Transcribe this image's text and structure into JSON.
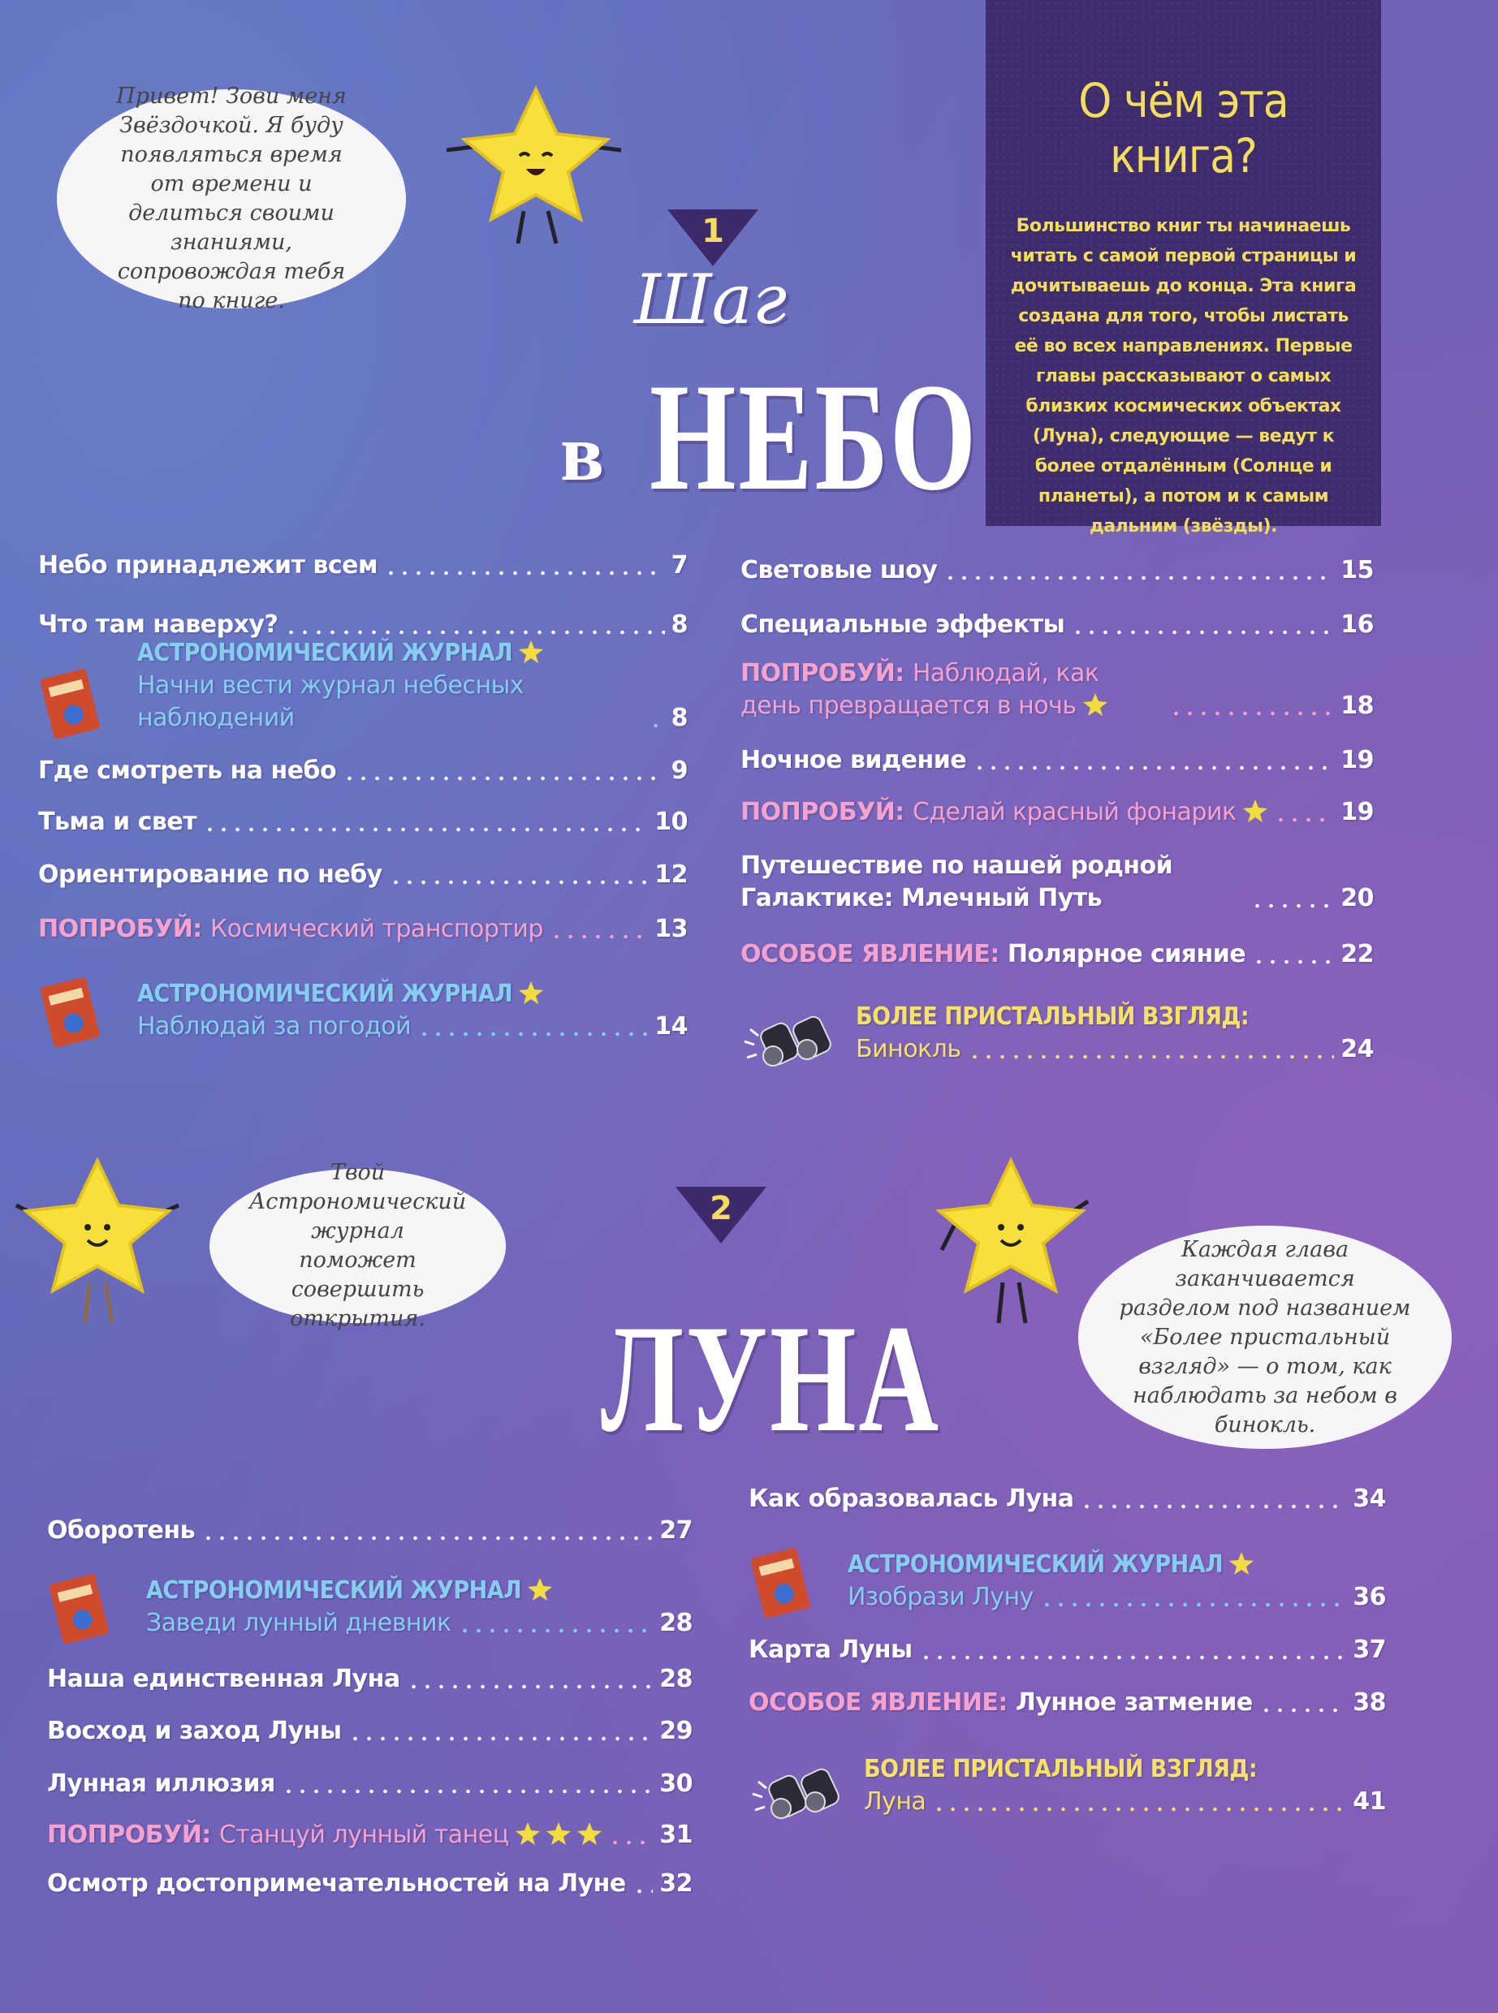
{
  "bubbles": [
    "Привет! Зови меня Звёздочкой. Я буду появляться время от времени и делиться своими знаниями, сопровождая тебя по книге.",
    "Твой Астрономический журнал поможет совершить открытия.",
    "Каждая глава заканчивается разделом под названием «Более пристальный взгляд» — о том, как наблюдать за небом в бинокль."
  ],
  "about": {
    "title": "О чём эта книга?",
    "text": "Большинство книг ты начинаешь читать с самой первой страницы и дочитываешь до конца. Эта книга создана для того, чтобы листать её во всех направлениях. Первые главы рассказывают о самых близких космических объектах (Луна), следующие — ведут к более отдалённым (Солнце и планеты), а потом и к самым дальним (звёзды)."
  },
  "chapters": [
    {
      "number": 1,
      "title_small": "Шаг",
      "title_prefix": "в",
      "title": "НЕБО",
      "left": [
        {
          "text": "Небо принадлежит всем",
          "page": 7
        },
        {
          "text": "Что там наверху?",
          "page": 8
        },
        {
          "label": "АСТРОНОМИЧЕСКИЙ ЖУРНАЛ",
          "text": "Начни вести журнал небесных наблюдений",
          "page": 8
        },
        {
          "text": "Где смотреть на небо",
          "page": 9
        },
        {
          "text": "Тьма и свет",
          "page": 10
        },
        {
          "text": "Ориентирование по небу",
          "page": 12
        },
        {
          "label": "ПОПРОБУЙ:",
          "text": "Космический транспортир",
          "page": 13
        },
        {
          "label": "АСТРОНОМИЧЕСКИЙ ЖУРНАЛ",
          "text": "Наблюдай за погодой",
          "page": 14
        }
      ],
      "right": [
        {
          "text": "Световые шоу",
          "page": 15
        },
        {
          "text": "Специальные эффекты",
          "page": 16
        },
        {
          "label": "ПОПРОБУЙ:",
          "text": "Наблюдай, как день превращается в ночь",
          "page": 18
        },
        {
          "text": "Ночное видение",
          "page": 19
        },
        {
          "label": "ПОПРОБУЙ:",
          "text": "Сделай красный фонарик",
          "page": 19
        },
        {
          "text": "Путешествие по нашей родной Галактике: Млечный Путь",
          "page": 20
        },
        {
          "label": "ОСОБОЕ ЯВЛЕНИЕ:",
          "text": "Полярное сияние",
          "page": 22
        },
        {
          "label": "БОЛЕЕ ПРИСТАЛЬНЫЙ ВЗГЛЯД:",
          "text": "Бинокль",
          "page": 24
        }
      ]
    },
    {
      "number": 2,
      "title": "ЛУНА",
      "left": [
        {
          "text": "Оборотень",
          "page": 27
        },
        {
          "label": "АСТРОНОМИЧЕСКИЙ ЖУРНАЛ",
          "text": "Заведи лунный дневник",
          "page": 28
        },
        {
          "text": "Наша единственная Луна",
          "page": 28
        },
        {
          "text": "Восход и заход Луны",
          "page": 29
        },
        {
          "text": "Лунная иллюзия",
          "page": 30
        },
        {
          "label": "ПОПРОБУЙ:",
          "text": "Станцуй лунный танец",
          "page": 31
        },
        {
          "text": "Осмотр достопримечательностей на Луне",
          "page": 32
        }
      ],
      "right": [
        {
          "text": "Как образовалась Луна",
          "page": 34
        },
        {
          "label": "АСТРОНОМИЧЕСКИЙ ЖУРНАЛ",
          "text": "Изобрази Луну",
          "page": 36
        },
        {
          "text": "Карта Луны",
          "page": 37
        },
        {
          "label": "ОСОБОЕ ЯВЛЕНИЕ:",
          "text": "Лунное затмение",
          "page": 38
        },
        {
          "label": "БОЛЕЕ ПРИСТАЛЬНЫЙ ВЗГЛЯД:",
          "text": "Луна",
          "page": 41
        }
      ]
    }
  ]
}
